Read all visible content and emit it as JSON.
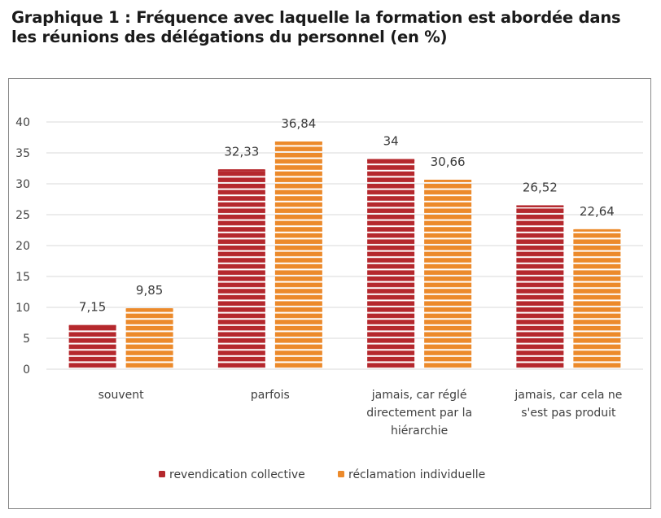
{
  "title_line1": "Graphique 1 : Fréquence avec laquelle la formation est abordée dans",
  "title_line2": "les réunions des délégations du personnel (en %)",
  "chart_data": {
    "type": "bar",
    "title": "Graphique 1 : Fréquence avec laquelle la formation est abordée dans les réunions des délégations du personnel (en %)",
    "categories": [
      [
        "souvent"
      ],
      [
        "parfois"
      ],
      [
        "jamais, car réglé",
        "directement par la",
        "hiérarchie"
      ],
      [
        "jamais, car cela ne",
        "s'est pas produit"
      ]
    ],
    "series": [
      {
        "name": "revendication collective",
        "values": [
          7.15,
          32.33,
          34,
          26.52
        ],
        "labels": [
          "7,15",
          "32,33",
          "34",
          "26,52"
        ],
        "color": "#b5282d"
      },
      {
        "name": "réclamation individuelle",
        "values": [
          9.85,
          36.84,
          30.66,
          22.64
        ],
        "labels": [
          "9,85",
          "36,84",
          "30,66",
          "22,64"
        ],
        "color": "#ec8a2b"
      }
    ],
    "ylim": [
      0,
      40
    ],
    "yticks": [
      "0",
      "5",
      "10",
      "15",
      "20",
      "25",
      "30",
      "35",
      "40"
    ],
    "grid": true,
    "legend": "bottom"
  }
}
